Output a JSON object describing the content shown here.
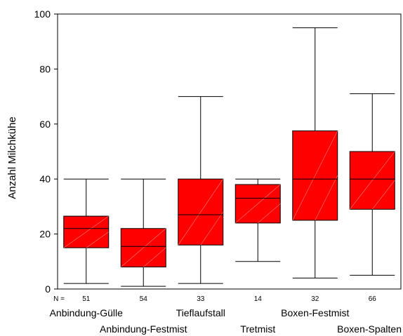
{
  "chart_data": {
    "type": "boxplot",
    "title": "",
    "xlabel": "",
    "ylabel": "Anzahl Milchkühe",
    "ylim": [
      0,
      100
    ],
    "yticks": [
      0,
      20,
      40,
      60,
      80,
      100
    ],
    "grid": false,
    "n_prefix": "N =",
    "box_color": "#ff0000",
    "categories": [
      "Anbindung-Gülle",
      "Anbindung-Festmist",
      "Tieflaufstall",
      "Tretmist",
      "Boxen-Festmist",
      "Boxen-Spalten"
    ],
    "n": [
      "51",
      "54",
      "33",
      "14",
      "32",
      "66"
    ],
    "boxes": [
      {
        "min": 2,
        "q1": 15,
        "median": 22,
        "q3": 26.5,
        "max": 40
      },
      {
        "min": 1,
        "q1": 8,
        "median": 15.5,
        "q3": 22,
        "max": 40
      },
      {
        "min": 2,
        "q1": 16,
        "median": 27,
        "q3": 40,
        "max": 70
      },
      {
        "min": 10,
        "q1": 24,
        "median": 33,
        "q3": 38,
        "max": 40
      },
      {
        "min": 4,
        "q1": 25,
        "median": 40,
        "q3": 57.5,
        "max": 95
      },
      {
        "min": 5,
        "q1": 29,
        "median": 40,
        "q3": 50,
        "max": 71
      }
    ]
  }
}
